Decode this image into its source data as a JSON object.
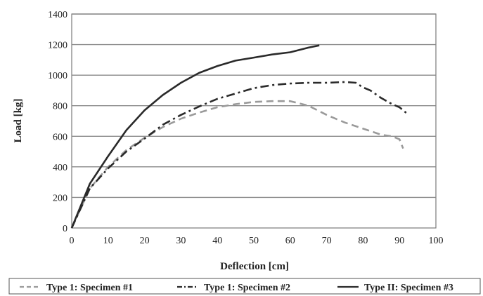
{
  "chart_data": {
    "type": "line",
    "xlabel": "Deflection [cm]",
    "ylabel": "Load [kg]",
    "xlim": [
      0,
      100
    ],
    "ylim": [
      0,
      1400
    ],
    "xticks": [
      0,
      10,
      20,
      30,
      40,
      50,
      60,
      70,
      80,
      90,
      100
    ],
    "yticks": [
      0,
      200,
      400,
      600,
      800,
      1000,
      1200,
      1400
    ],
    "grid": "horizontal",
    "legend_position": "bottom",
    "series": [
      {
        "name": "Type 1: Specimen #1",
        "style": "dashed",
        "color": "#9a9a9a",
        "x": [
          0,
          5,
          10,
          15,
          20,
          25,
          30,
          35,
          40,
          45,
          50,
          55,
          60,
          65,
          70,
          75,
          80,
          85,
          88,
          90,
          91
        ],
        "y": [
          0,
          260,
          400,
          510,
          590,
          660,
          715,
          755,
          790,
          810,
          825,
          830,
          830,
          800,
          740,
          690,
          650,
          610,
          600,
          580,
          520
        ]
      },
      {
        "name": "Type 1: Specimen #2",
        "style": "dash-dot",
        "color": "#2a2a2a",
        "x": [
          0,
          5,
          10,
          15,
          20,
          25,
          30,
          35,
          40,
          45,
          50,
          55,
          60,
          65,
          70,
          75,
          78,
          80,
          82,
          85,
          88,
          90,
          92
        ],
        "y": [
          0,
          260,
          390,
          500,
          585,
          675,
          740,
          795,
          845,
          880,
          915,
          935,
          945,
          950,
          950,
          955,
          950,
          920,
          900,
          850,
          810,
          790,
          750
        ]
      },
      {
        "name": "Type II: Specimen #3",
        "style": "solid",
        "color": "#2a2a2a",
        "x": [
          0,
          5,
          10,
          15,
          20,
          25,
          30,
          35,
          40,
          45,
          50,
          55,
          60,
          65,
          68
        ],
        "y": [
          0,
          290,
          470,
          640,
          770,
          870,
          950,
          1015,
          1060,
          1095,
          1115,
          1135,
          1150,
          1180,
          1195
        ]
      }
    ]
  }
}
